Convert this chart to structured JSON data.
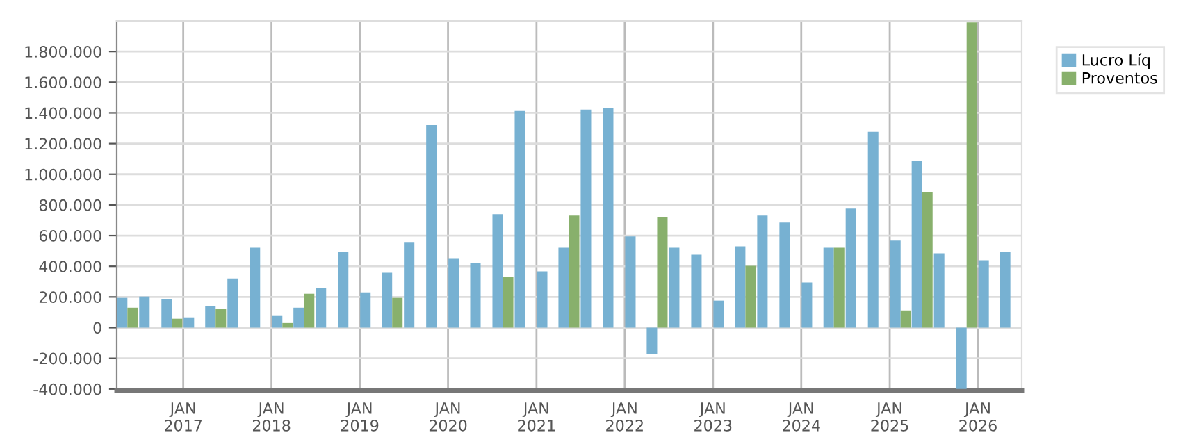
{
  "chart_data": {
    "type": "bar",
    "x": [
      "2016-05-15",
      "2016-08-15",
      "2016-11-15",
      "2017-02-15",
      "2017-05-15",
      "2017-08-15",
      "2017-11-15",
      "2018-02-15",
      "2018-05-15",
      "2018-08-15",
      "2018-11-15",
      "2019-02-15",
      "2019-05-15",
      "2019-08-15",
      "2019-11-15",
      "2020-02-15",
      "2020-05-15",
      "2020-08-15",
      "2020-11-15",
      "2021-02-15",
      "2021-05-15",
      "2021-08-15",
      "2021-11-15",
      "2022-02-15",
      "2022-05-15",
      "2022-08-15",
      "2022-11-15",
      "2023-02-15",
      "2023-05-15",
      "2023-08-15",
      "2023-11-15",
      "2024-02-15",
      "2024-05-15",
      "2024-08-15",
      "2024-11-15",
      "2025-02-15",
      "2025-05-15",
      "2025-08-15",
      "2025-11-15",
      "2026-02-15",
      "2026-05-15"
    ],
    "series": [
      {
        "name": "Lucro Líq",
        "color": "#77b1d2",
        "values": [
          194000,
          203000,
          185000,
          67000,
          139000,
          321000,
          521000,
          76000,
          130000,
          258000,
          494000,
          230000,
          358000,
          558000,
          1321000,
          448000,
          421000,
          739000,
          1412000,
          367000,
          521000,
          1421000,
          1430000,
          594000,
          -170000,
          521000,
          476000,
          176000,
          530000,
          730000,
          685000,
          294000,
          521000,
          776000,
          1276000,
          567000,
          1085000,
          485000,
          -400000,
          439000,
          494000
        ]
      },
      {
        "name": "Proventos",
        "color": "#88b06c",
        "values": [
          130000,
          0,
          58000,
          0,
          121000,
          0,
          0,
          30000,
          221000,
          0,
          0,
          0,
          194000,
          0,
          0,
          0,
          0,
          330000,
          0,
          0,
          730000,
          0,
          0,
          0,
          721000,
          0,
          0,
          0,
          403000,
          0,
          0,
          0,
          521000,
          0,
          0,
          112000,
          885000,
          0,
          1990000,
          0,
          0
        ]
      }
    ],
    "xlim": [
      "2016-04-01",
      "2026-07-01"
    ],
    "xticks": [
      {
        "value": "2017-01-01",
        "label": "JAN\n2017"
      },
      {
        "value": "2018-01-01",
        "label": "JAN\n2018"
      },
      {
        "value": "2019-01-01",
        "label": "JAN\n2019"
      },
      {
        "value": "2020-01-01",
        "label": "JAN\n2020"
      },
      {
        "value": "2021-01-01",
        "label": "JAN\n2021"
      },
      {
        "value": "2022-01-01",
        "label": "JAN\n2022"
      },
      {
        "value": "2023-01-01",
        "label": "JAN\n2023"
      },
      {
        "value": "2024-01-01",
        "label": "JAN\n2024"
      },
      {
        "value": "2025-01-01",
        "label": "JAN\n2025"
      },
      {
        "value": "2026-01-01",
        "label": "JAN\n2026"
      }
    ],
    "ylim": [
      -410000,
      2000000
    ],
    "yticks": [
      {
        "value": -400000,
        "label": "-400.000"
      },
      {
        "value": -200000,
        "label": "-200.000"
      },
      {
        "value": 0,
        "label": "0"
      },
      {
        "value": 200000,
        "label": "200.000"
      },
      {
        "value": 400000,
        "label": "400.000"
      },
      {
        "value": 600000,
        "label": "600.000"
      },
      {
        "value": 800000,
        "label": "800.000"
      },
      {
        "value": 1000000,
        "label": "1.000.000"
      },
      {
        "value": 1200000,
        "label": "1.200.000"
      },
      {
        "value": 1400000,
        "label": "1.400.000"
      },
      {
        "value": 1600000,
        "label": "1.600.000"
      },
      {
        "value": 1800000,
        "label": "1.800.000"
      }
    ],
    "grid": true,
    "legend": "top right"
  }
}
